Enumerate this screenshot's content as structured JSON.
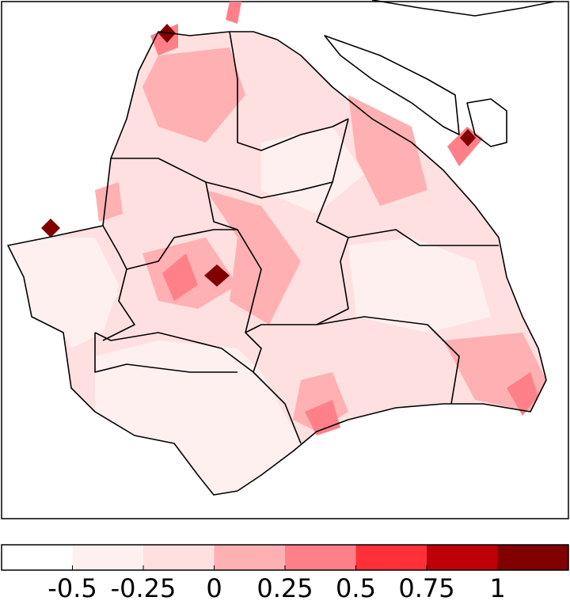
{
  "colorbar": {
    "colors": [
      "#ffffff",
      "#fff0f0",
      "#ffe0e0",
      "#ffb0b3",
      "#ff8088",
      "#ff3038",
      "#c00008",
      "#800000"
    ],
    "ticks": [
      -0.5,
      -0.25,
      0,
      0.25,
      0.5,
      0.75,
      1
    ]
  }
}
